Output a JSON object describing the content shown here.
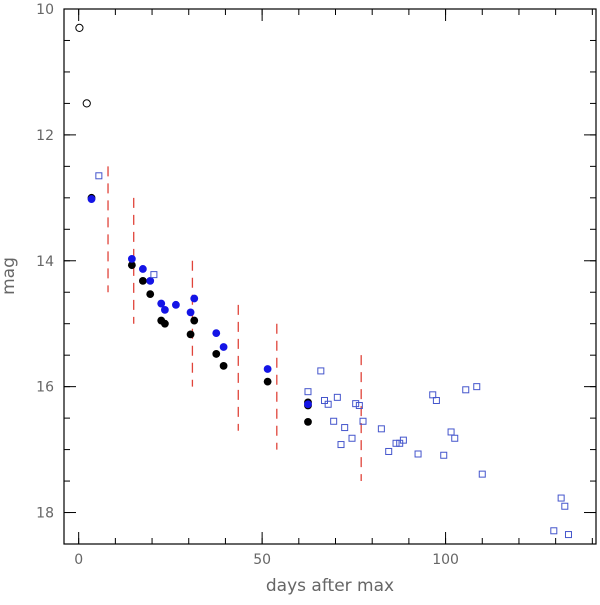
{
  "chart_data": {
    "type": "scatter",
    "title": "",
    "xlabel": "days after max",
    "ylabel": "mag",
    "xlim": [
      -4,
      141
    ],
    "ylim": [
      18.5,
      10
    ],
    "y_inverted": true,
    "grid": false,
    "x_ticks": [
      0,
      50,
      100
    ],
    "x_tick_labels": [
      "0",
      "50",
      "100"
    ],
    "y_ticks": [
      10,
      12,
      14,
      16,
      18
    ],
    "y_tick_labels": [
      "10",
      "12",
      "14",
      "16",
      "18"
    ],
    "x_minor_step": 10,
    "y_minor_step": 0.5,
    "series": [
      {
        "marker": "open-circle",
        "color": "#000000",
        "points": [
          [
            0.2,
            10.3
          ],
          [
            2.2,
            11.5
          ]
        ]
      },
      {
        "marker": "filled-circle",
        "color": "#000000",
        "points": [
          [
            3.5,
            13.0
          ],
          [
            14.5,
            14.07
          ],
          [
            17.5,
            14.32
          ],
          [
            19.5,
            14.53
          ],
          [
            22.5,
            14.95
          ],
          [
            23.5,
            15.0
          ],
          [
            30.5,
            15.17
          ],
          [
            31.5,
            14.95
          ],
          [
            37.5,
            15.48
          ],
          [
            39.5,
            15.67
          ],
          [
            51.5,
            15.92
          ],
          [
            62.5,
            16.25
          ],
          [
            62.5,
            16.3
          ],
          [
            62.5,
            16.56
          ]
        ]
      },
      {
        "marker": "filled-circle",
        "color": "#1414e6",
        "points": [
          [
            3.5,
            13.02
          ],
          [
            14.5,
            13.97
          ],
          [
            17.5,
            14.13
          ],
          [
            19.5,
            14.32
          ],
          [
            22.5,
            14.68
          ],
          [
            23.5,
            14.78
          ],
          [
            26.5,
            14.7
          ],
          [
            30.5,
            14.82
          ],
          [
            31.5,
            14.6
          ],
          [
            37.5,
            15.15
          ],
          [
            39.5,
            15.37
          ],
          [
            51.5,
            15.72
          ],
          [
            62.5,
            16.28
          ]
        ]
      },
      {
        "marker": "open-square",
        "color": "#4455cc",
        "points": [
          [
            5.5,
            12.65
          ],
          [
            20.5,
            14.22
          ],
          [
            62.5,
            16.08
          ],
          [
            66.0,
            15.75
          ],
          [
            67.0,
            16.22
          ],
          [
            68.0,
            16.28
          ],
          [
            69.5,
            16.55
          ],
          [
            70.5,
            16.17
          ],
          [
            71.5,
            16.92
          ],
          [
            72.5,
            16.65
          ],
          [
            74.5,
            16.82
          ],
          [
            75.5,
            16.27
          ],
          [
            76.5,
            16.3
          ],
          [
            77.5,
            16.55
          ],
          [
            82.5,
            16.67
          ],
          [
            84.5,
            17.03
          ],
          [
            86.5,
            16.9
          ],
          [
            87.5,
            16.9
          ],
          [
            88.5,
            16.85
          ],
          [
            92.5,
            17.07
          ],
          [
            96.5,
            16.13
          ],
          [
            97.5,
            16.22
          ],
          [
            99.5,
            17.09
          ],
          [
            101.5,
            16.72
          ],
          [
            102.5,
            16.82
          ],
          [
            105.5,
            16.05
          ],
          [
            108.5,
            16.0
          ],
          [
            110.0,
            17.39
          ],
          [
            129.5,
            18.29
          ],
          [
            131.5,
            17.77
          ],
          [
            132.5,
            17.9
          ],
          [
            133.5,
            18.35
          ]
        ]
      }
    ],
    "range_markers": {
      "color": "#e0443a",
      "style": "dashed",
      "segments": [
        {
          "x": 8,
          "y_from": 12.5,
          "y_to": 14.5
        },
        {
          "x": 15,
          "y_from": 13.0,
          "y_to": 15.0
        },
        {
          "x": 31,
          "y_from": 14.0,
          "y_to": 16.0
        },
        {
          "x": 43.5,
          "y_from": 14.7,
          "y_to": 16.7
        },
        {
          "x": 54,
          "y_from": 15.0,
          "y_to": 17.0
        },
        {
          "x": 77,
          "y_from": 15.5,
          "y_to": 17.5
        }
      ]
    }
  }
}
